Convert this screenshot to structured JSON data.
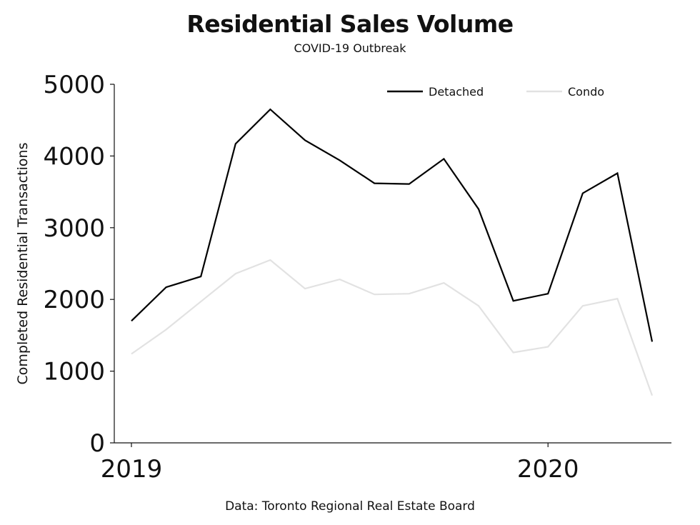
{
  "chart_data": {
    "type": "line",
    "title": "Residential Sales Volume",
    "subtitle": "COVID-19 Outbreak",
    "source": "Data: Toronto Regional Real Estate Board",
    "xlabel": "",
    "ylabel": "Completed Residential Transactions",
    "ylim": [
      0,
      5000
    ],
    "yticks": [
      0,
      1000,
      2000,
      3000,
      4000,
      5000
    ],
    "x": [
      "2019-01",
      "2019-02",
      "2019-03",
      "2019-04",
      "2019-05",
      "2019-06",
      "2019-07",
      "2019-08",
      "2019-09",
      "2019-10",
      "2019-11",
      "2019-12",
      "2020-01",
      "2020-02",
      "2020-03",
      "2020-04"
    ],
    "xtick_labels": [
      {
        "at": "2019-01",
        "label": "2019"
      },
      {
        "at": "2020-01",
        "label": "2020"
      }
    ],
    "legend_position": "top-right",
    "grid": false,
    "series": [
      {
        "name": "Detached",
        "color": "#000000",
        "values": [
          1700,
          2170,
          2320,
          4170,
          4650,
          4220,
          3940,
          3620,
          3610,
          3960,
          3260,
          1980,
          2080,
          3480,
          3760,
          1410
        ]
      },
      {
        "name": "Condo",
        "color": "#e2e2e2",
        "values": [
          1240,
          1580,
          1970,
          2360,
          2550,
          2150,
          2280,
          2070,
          2080,
          2230,
          1910,
          1260,
          1340,
          1910,
          2010,
          660
        ]
      }
    ]
  }
}
